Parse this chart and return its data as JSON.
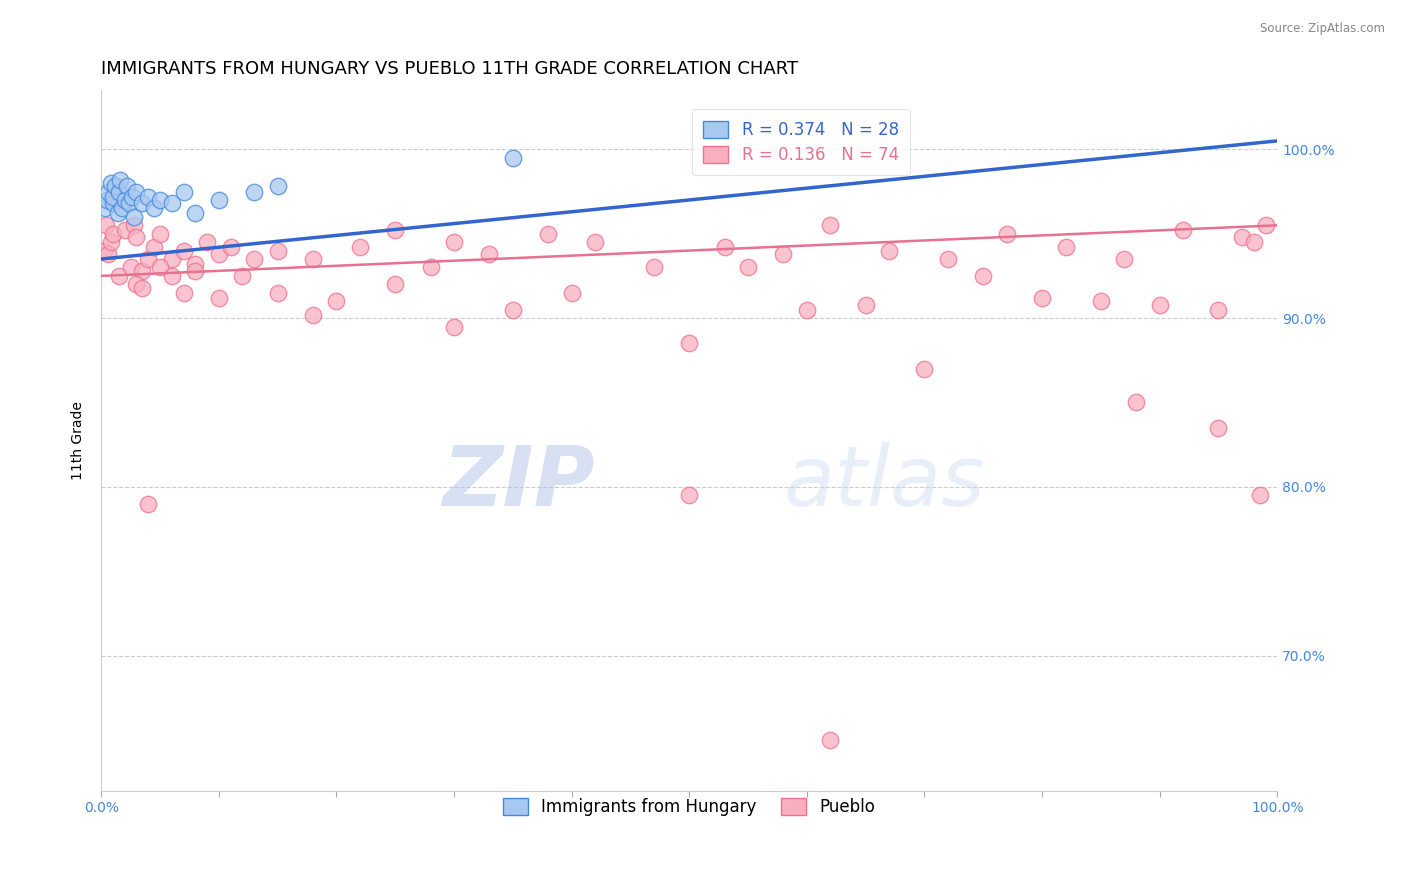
{
  "title": "IMMIGRANTS FROM HUNGARY VS PUEBLO 11TH GRADE CORRELATION CHART",
  "source_text": "Source: ZipAtlas.com",
  "ylabel": "11th Grade",
  "xlim": [
    0.0,
    100.0
  ],
  "ylim": [
    62.0,
    103.5
  ],
  "yticks": [
    70.0,
    80.0,
    90.0,
    100.0
  ],
  "xtick_positions": [
    0.0,
    10.0,
    20.0,
    30.0,
    40.0,
    50.0,
    60.0,
    70.0,
    80.0,
    90.0,
    100.0
  ],
  "xtick_labels_show": [
    "0.0%",
    "",
    "",
    "",
    "",
    "",
    "",
    "",
    "",
    "",
    "100.0%"
  ],
  "blue_R": 0.374,
  "blue_N": 28,
  "pink_R": 0.136,
  "pink_N": 74,
  "blue_color": "#a8c8f0",
  "pink_color": "#f8b0c0",
  "blue_edge_color": "#4488dd",
  "pink_edge_color": "#f07090",
  "blue_line_color": "#3366cc",
  "pink_line_color": "#e87090",
  "legend_label_blue": "Immigrants from Hungary",
  "legend_label_pink": "Pueblo",
  "watermark_zip": "ZIP",
  "watermark_atlas": "atlas",
  "background_color": "#ffffff",
  "grid_color": "#cccccc",
  "title_fontsize": 13,
  "axis_label_fontsize": 10,
  "tick_label_fontsize": 10,
  "legend_fontsize": 12,
  "right_tick_color": "#4488dd",
  "blue_scatter_x": [
    0.3,
    0.5,
    0.6,
    0.8,
    1.0,
    1.0,
    1.2,
    1.4,
    1.5,
    1.6,
    1.8,
    2.0,
    2.2,
    2.4,
    2.6,
    2.8,
    3.0,
    3.5,
    4.0,
    4.5,
    5.0,
    6.0,
    7.0,
    8.0,
    10.0,
    13.0,
    15.0,
    35.0
  ],
  "blue_scatter_y": [
    96.5,
    97.0,
    97.5,
    98.0,
    96.8,
    97.2,
    97.8,
    96.2,
    97.5,
    98.2,
    96.5,
    97.0,
    97.8,
    96.8,
    97.2,
    96.0,
    97.5,
    96.8,
    97.2,
    96.5,
    97.0,
    96.8,
    97.5,
    96.2,
    97.0,
    97.5,
    97.8,
    99.5
  ],
  "pink_scatter_x": [
    0.2,
    0.4,
    0.6,
    0.8,
    1.0,
    1.5,
    2.0,
    2.5,
    2.8,
    3.0,
    3.5,
    4.0,
    4.5,
    5.0,
    6.0,
    7.0,
    8.0,
    9.0,
    10.0,
    11.0,
    13.0,
    15.0,
    18.0,
    22.0,
    25.0,
    28.0,
    30.0,
    33.0,
    38.0,
    42.0,
    47.0,
    53.0,
    58.0,
    62.0,
    67.0,
    72.0,
    77.0,
    82.0,
    87.0,
    92.0,
    97.0,
    99.0,
    3.0,
    5.0,
    7.0,
    12.0,
    20.0,
    35.0,
    55.0,
    65.0,
    75.0,
    85.0,
    95.0,
    8.0,
    15.0,
    25.0,
    40.0,
    60.0,
    80.0,
    90.0,
    98.0,
    3.5,
    6.0,
    10.0,
    18.0,
    30.0,
    50.0,
    70.0,
    88.0,
    95.0,
    98.5,
    4.0,
    50.0,
    62.0
  ],
  "pink_scatter_y": [
    94.0,
    95.5,
    93.8,
    94.5,
    95.0,
    92.5,
    95.2,
    93.0,
    95.5,
    94.8,
    92.8,
    93.5,
    94.2,
    95.0,
    93.5,
    94.0,
    93.2,
    94.5,
    93.8,
    94.2,
    93.5,
    94.0,
    93.5,
    94.2,
    95.2,
    93.0,
    94.5,
    93.8,
    95.0,
    94.5,
    93.0,
    94.2,
    93.8,
    95.5,
    94.0,
    93.5,
    95.0,
    94.2,
    93.5,
    95.2,
    94.8,
    95.5,
    92.0,
    93.0,
    91.5,
    92.5,
    91.0,
    90.5,
    93.0,
    90.8,
    92.5,
    91.0,
    90.5,
    92.8,
    91.5,
    92.0,
    91.5,
    90.5,
    91.2,
    90.8,
    94.5,
    91.8,
    92.5,
    91.2,
    90.2,
    89.5,
    88.5,
    87.0,
    85.0,
    83.5,
    79.5,
    79.0,
    79.5,
    65.0
  ],
  "blue_trendline_x": [
    0,
    100
  ],
  "blue_trendline_y": [
    93.5,
    100.5
  ],
  "pink_trendline_x": [
    0,
    100
  ],
  "pink_trendline_y": [
    92.5,
    95.5
  ]
}
